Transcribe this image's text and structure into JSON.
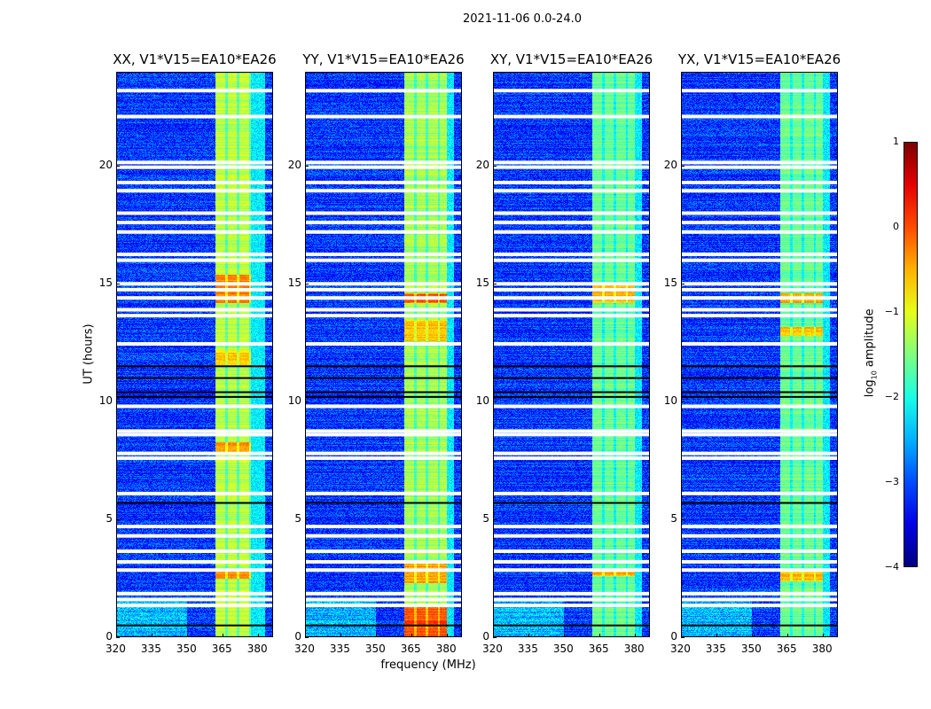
{
  "suptitle": "2021-11-06 0.0-24.0",
  "chart_data": {
    "type": "heatmap",
    "title": "2021-11-06 0.0-24.0",
    "xlabel": "frequency (MHz)",
    "ylabel": "UT (hours)",
    "xlim": [
      320,
      386.5
    ],
    "ylim": [
      0,
      24
    ],
    "xticks": [
      "320",
      "335",
      "350",
      "365",
      "380"
    ],
    "xtick_values": [
      320,
      335,
      350,
      365,
      380
    ],
    "yticks": [
      "0",
      "5",
      "10",
      "15",
      "20"
    ],
    "ytick_values": [
      0,
      5,
      10,
      15,
      20
    ],
    "colormap": "jet",
    "colorbar": {
      "label": "log10 amplitude",
      "label_main": "log",
      "label_sub": "10",
      "label_rest": " amplitude",
      "range": [
        -4,
        1
      ],
      "ticks": [
        "1",
        "0",
        "−1",
        "−2",
        "−3",
        "−4"
      ],
      "tick_values": [
        1,
        0,
        -1,
        -2,
        -3,
        -4
      ]
    },
    "background_level": -3.1,
    "band_mhz": [
      362,
      382
    ],
    "band_channel_gaps_mhz": [
      366.5,
      371.5,
      376.5
    ],
    "flagged_hours_white": [
      23.2,
      22.1,
      20.15,
      19.95,
      19.3,
      18.95,
      18.0,
      17.6,
      17.2,
      16.25,
      16.0,
      15.0,
      14.75,
      14.4,
      13.9,
      13.65,
      12.45,
      9.8,
      8.75,
      8.6,
      7.8,
      7.6,
      6.1,
      4.7,
      4.3,
      3.65,
      3.2,
      2.85,
      1.85,
      1.6,
      1.35
    ],
    "dark_hours": [
      5.7,
      0.5,
      11.5,
      11.0,
      10.4,
      10.2
    ],
    "panels": [
      {
        "title": "XX, V1*V15=EA10*EA26",
        "band_level": -1.2,
        "band_end_mhz": 377,
        "hot_intervals": [
          [
            14.2,
            15.4,
            -0.3
          ],
          [
            7.8,
            8.3,
            -0.4
          ],
          [
            2.5,
            2.9,
            -0.3
          ],
          [
            11.5,
            12.2,
            -0.7
          ]
        ]
      },
      {
        "title": "YY, V1*V15=EA10*EA26",
        "band_level": -1.3,
        "band_end_mhz": 380,
        "hot_intervals": [
          [
            0,
            1.3,
            0.0
          ],
          [
            14.2,
            14.6,
            -0.1
          ],
          [
            2.3,
            3.2,
            -0.4
          ],
          [
            12.6,
            13.5,
            -0.6
          ]
        ]
      },
      {
        "title": "XY, V1*V15=EA10*EA26",
        "band_level": -1.6,
        "band_end_mhz": 380,
        "hot_intervals": [
          [
            14.2,
            15.0,
            -0.5
          ],
          [
            2.6,
            2.9,
            -0.5
          ]
        ]
      },
      {
        "title": "YX, V1*V15=EA10*EA26",
        "band_level": -1.6,
        "band_end_mhz": 380,
        "hot_intervals": [
          [
            14.2,
            14.6,
            -0.5
          ],
          [
            2.4,
            2.9,
            -0.5
          ],
          [
            12.8,
            13.2,
            -0.6
          ]
        ]
      }
    ]
  }
}
